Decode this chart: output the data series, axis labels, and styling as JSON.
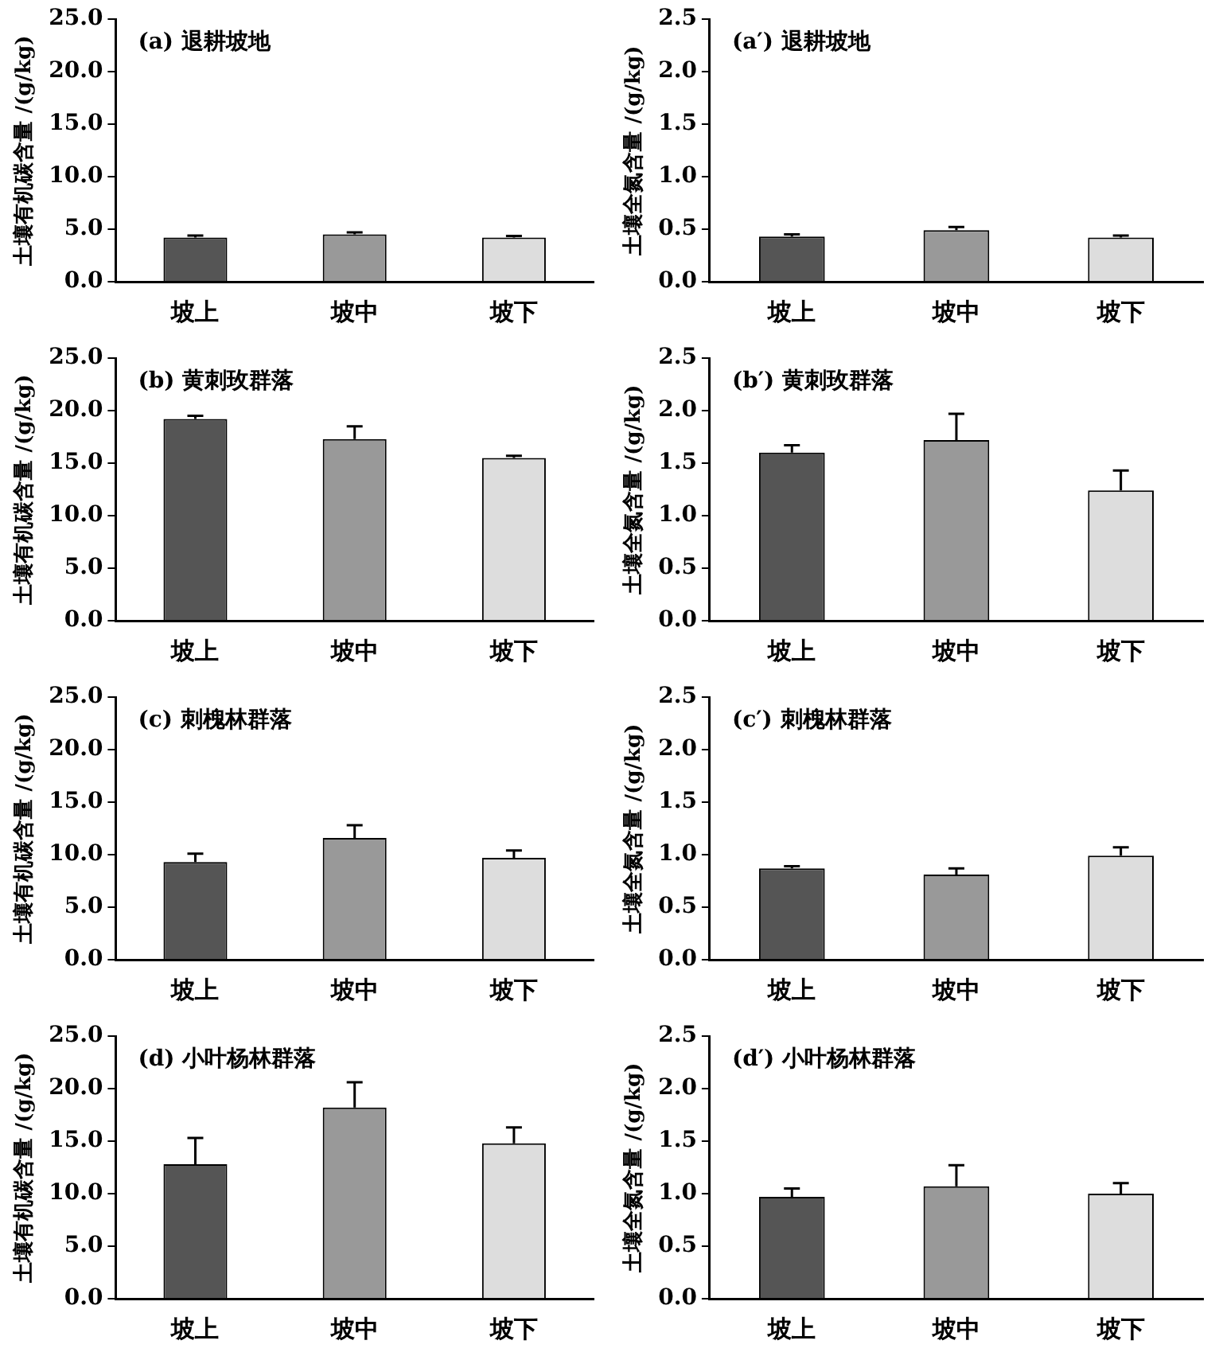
{
  "chart_data": [
    {
      "type": "bar",
      "title": "(a) 退耕坡地",
      "ylabel": "土壤有机碳含量 /(g/kg)",
      "categories": [
        "坡上",
        "坡中",
        "坡下"
      ],
      "values": [
        4.2,
        4.5,
        4.2
      ],
      "errors": [
        [
          4.2,
          4.4
        ],
        [
          4.5,
          4.7
        ],
        [
          4.2,
          4.35
        ]
      ],
      "colors": [
        "#555555",
        "#999999",
        "#dddddd"
      ],
      "ylim": [
        0,
        25
      ],
      "yticks": [
        {
          "value": 0,
          "label": "0.0"
        },
        {
          "value": 5,
          "label": "5.0"
        },
        {
          "value": 10,
          "label": "10.0"
        },
        {
          "value": 15,
          "label": "15.0"
        },
        {
          "value": 20,
          "label": "20.0"
        },
        {
          "value": 25,
          "label": "25.0"
        }
      ],
      "grid": false,
      "legend": false
    },
    {
      "type": "bar",
      "title": "(a′) 退耕坡地",
      "ylabel": "土壤全氮含量 /(g/kg)",
      "categories": [
        "坡上",
        "坡中",
        "坡下"
      ],
      "values": [
        0.43,
        0.49,
        0.42
      ],
      "errors": [
        [
          0.43,
          0.45
        ],
        [
          0.49,
          0.52
        ],
        [
          0.42,
          0.44
        ]
      ],
      "colors": [
        "#555555",
        "#999999",
        "#dddddd"
      ],
      "ylim": [
        0,
        2.5
      ],
      "yticks": [
        {
          "value": 0,
          "label": "0.0"
        },
        0.5,
        {
          "value": 1,
          "label": "1.0"
        },
        1.5,
        {
          "value": 2,
          "label": "2.0"
        },
        2.5
      ],
      "grid": false,
      "legend": false
    },
    {
      "type": "bar",
      "title": "(b) 黄刺玫群落",
      "ylabel": "土壤有机碳含量 /(g/kg)",
      "categories": [
        "坡上",
        "坡中",
        "坡下"
      ],
      "values": [
        19.2,
        17.3,
        15.5
      ],
      "errors": [
        [
          19.2,
          19.5
        ],
        [
          17.3,
          18.5
        ],
        [
          15.5,
          15.7
        ]
      ],
      "colors": [
        "#555555",
        "#999999",
        "#dddddd"
      ],
      "ylim": [
        0,
        25
      ],
      "yticks": [
        {
          "value": 0,
          "label": "0.0"
        },
        {
          "value": 5,
          "label": "5.0"
        },
        {
          "value": 10,
          "label": "10.0"
        },
        {
          "value": 15,
          "label": "15.0"
        },
        {
          "value": 20,
          "label": "20.0"
        },
        {
          "value": 25,
          "label": "25.0"
        }
      ],
      "grid": false,
      "legend": false
    },
    {
      "type": "bar",
      "title": "(b′) 黄刺玫群落",
      "ylabel": "土壤全氮含量 /(g/kg)",
      "categories": [
        "坡上",
        "坡中",
        "坡下"
      ],
      "values": [
        1.6,
        1.72,
        1.24
      ],
      "errors": [
        [
          1.6,
          1.67
        ],
        [
          1.72,
          1.97
        ],
        [
          1.24,
          1.43
        ]
      ],
      "colors": [
        "#555555",
        "#999999",
        "#dddddd"
      ],
      "ylim": [
        0,
        2.5
      ],
      "yticks": [
        {
          "value": 0,
          "label": "0.0"
        },
        0.5,
        {
          "value": 1,
          "label": "1.0"
        },
        1.5,
        {
          "value": 2,
          "label": "2.0"
        },
        2.5
      ],
      "grid": false,
      "legend": false
    },
    {
      "type": "bar",
      "title": "(c) 刺槐林群落",
      "ylabel": "土壤有机碳含量 /(g/kg)",
      "categories": [
        "坡上",
        "坡中",
        "坡下"
      ],
      "values": [
        9.3,
        11.6,
        9.7
      ],
      "errors": [
        [
          9.3,
          10.1
        ],
        [
          11.6,
          12.8
        ],
        [
          9.7,
          10.4
        ]
      ],
      "colors": [
        "#555555",
        "#999999",
        "#dddddd"
      ],
      "ylim": [
        0,
        25
      ],
      "yticks": [
        {
          "value": 0,
          "label": "0.0"
        },
        {
          "value": 5,
          "label": "5.0"
        },
        {
          "value": 10,
          "label": "10.0"
        },
        {
          "value": 15,
          "label": "15.0"
        },
        {
          "value": 20,
          "label": "20.0"
        },
        {
          "value": 25,
          "label": "25.0"
        }
      ],
      "grid": false,
      "legend": false
    },
    {
      "type": "bar",
      "title": "(c′) 刺槐林群落",
      "ylabel": "土壤全氮含量 /(g/kg)",
      "categories": [
        "坡上",
        "坡中",
        "坡下"
      ],
      "values": [
        0.87,
        0.81,
        0.99
      ],
      "errors": [
        [
          0.87,
          0.89
        ],
        [
          0.81,
          0.87
        ],
        [
          0.99,
          1.07
        ]
      ],
      "colors": [
        "#555555",
        "#999999",
        "#dddddd"
      ],
      "ylim": [
        0,
        2.5
      ],
      "yticks": [
        {
          "value": 0,
          "label": "0.0"
        },
        0.5,
        {
          "value": 1,
          "label": "1.0"
        },
        1.5,
        {
          "value": 2,
          "label": "2.0"
        },
        2.5
      ],
      "grid": false,
      "legend": false
    },
    {
      "type": "bar",
      "title": "(d) 小叶杨林群落",
      "ylabel": "土壤有机碳含量 /(g/kg)",
      "categories": [
        "坡上",
        "坡中",
        "坡下"
      ],
      "values": [
        12.8,
        18.2,
        14.8
      ],
      "errors": [
        [
          12.8,
          15.3
        ],
        [
          18.2,
          20.6
        ],
        [
          14.8,
          16.3
        ]
      ],
      "colors": [
        "#555555",
        "#999999",
        "#dddddd"
      ],
      "ylim": [
        0,
        25
      ],
      "yticks": [
        {
          "value": 0,
          "label": "0.0"
        },
        {
          "value": 5,
          "label": "5.0"
        },
        {
          "value": 10,
          "label": "10.0"
        },
        {
          "value": 15,
          "label": "15.0"
        },
        {
          "value": 20,
          "label": "20.0"
        },
        {
          "value": 25,
          "label": "25.0"
        }
      ],
      "grid": false,
      "legend": false
    },
    {
      "type": "bar",
      "title": "(d′) 小叶杨林群落",
      "ylabel": "土壤全氮含量 /(g/kg)",
      "categories": [
        "坡上",
        "坡中",
        "坡下"
      ],
      "values": [
        0.97,
        1.07,
        1.0
      ],
      "errors": [
        [
          0.97,
          1.05
        ],
        [
          1.07,
          1.27
        ],
        [
          1.0,
          1.1
        ]
      ],
      "colors": [
        "#555555",
        "#999999",
        "#dddddd"
      ],
      "ylim": [
        0,
        2.5
      ],
      "yticks": [
        {
          "value": 0,
          "label": "0.0"
        },
        0.5,
        {
          "value": 1,
          "label": "1.0"
        },
        1.5,
        {
          "value": 2,
          "label": "2.0"
        },
        2.5
      ],
      "grid": false,
      "legend": false
    }
  ]
}
